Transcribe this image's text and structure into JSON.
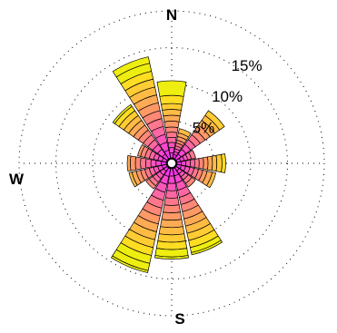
{
  "chart_data": {
    "type": "windrose",
    "title": "",
    "direction_labels": {
      "north": "N",
      "south": "S",
      "west": "W",
      "east": ""
    },
    "ring_labels": [
      "5%",
      "10%",
      "15%"
    ],
    "radial_ticks_percent": [
      5,
      10,
      15
    ],
    "radial_max_percent": 20,
    "grid": true,
    "sector_count": 16,
    "sector_directions_deg": [
      0,
      22.5,
      45,
      67.5,
      90,
      112.5,
      135,
      157.5,
      180,
      202.5,
      225,
      247.5,
      270,
      292.5,
      315,
      337.5
    ],
    "bin_colors": [
      "#ff33ee",
      "#ff44d4",
      "#ff55bb",
      "#ff66a3",
      "#ff778c",
      "#ff8877",
      "#ff9966",
      "#ffaa55",
      "#ffbb44",
      "#ffcc33",
      "#ffdd22",
      "#eeee11"
    ],
    "sectors": [
      {
        "direction_deg": 0,
        "cumulative_percent": [
          0.7,
          1.4,
          2.1,
          2.8,
          3.5,
          4.2,
          5.0,
          5.8,
          6.6,
          7.4,
          8.5,
          10.5
        ]
      },
      {
        "direction_deg": 22.5,
        "cumulative_percent": [
          0.5,
          0.9,
          1.3,
          1.7,
          2.1,
          2.5,
          3.0,
          3.5,
          4.1
        ]
      },
      {
        "direction_deg": 45,
        "cumulative_percent": [
          0.8,
          1.6,
          2.4,
          3.2,
          4.0,
          4.8,
          5.6,
          6.4,
          7.2,
          8.0
        ]
      },
      {
        "direction_deg": 67.5,
        "cumulative_percent": [
          0.5,
          1.0,
          1.5,
          2.0,
          2.6
        ]
      },
      {
        "direction_deg": 90,
        "cumulative_percent": [
          0.6,
          1.2,
          1.8,
          2.4,
          3.0,
          3.6,
          4.2,
          4.8,
          5.4,
          6.1,
          6.6
        ]
      },
      {
        "direction_deg": 112.5,
        "cumulative_percent": [
          0.6,
          1.2,
          1.8,
          2.4,
          3.0,
          3.6,
          4.2,
          4.9,
          5.4
        ]
      },
      {
        "direction_deg": 135,
        "cumulative_percent": [
          0.5,
          1.0,
          1.5,
          2.0,
          2.6,
          3.2
        ]
      },
      {
        "direction_deg": 157.5,
        "cumulative_percent": [
          1.0,
          2.0,
          3.0,
          4.0,
          5.0,
          6.0,
          7.0,
          8.0,
          9.0,
          10.0,
          11.0,
          11.7,
          12.0
        ]
      },
      {
        "direction_deg": 180,
        "cumulative_percent": [
          1.0,
          2.0,
          3.0,
          4.0,
          5.0,
          6.0,
          7.0,
          8.0,
          9.0,
          10.0,
          11.0,
          12.0,
          12.3
        ]
      },
      {
        "direction_deg": 202.5,
        "cumulative_percent": [
          1.1,
          2.2,
          3.3,
          4.4,
          5.5,
          6.6,
          7.7,
          8.8,
          9.9,
          11.0,
          12.1,
          13.2,
          14.2,
          14.5
        ]
      },
      {
        "direction_deg": 225,
        "cumulative_percent": [
          0.6,
          1.2,
          1.8,
          2.4,
          3.0,
          3.5
        ]
      },
      {
        "direction_deg": 247.5,
        "cumulative_percent": [
          0.6,
          1.2,
          1.8,
          2.4,
          3.0,
          3.6,
          4.2,
          4.8,
          5.2
        ]
      },
      {
        "direction_deg": 270,
        "cumulative_percent": [
          0.7,
          1.4,
          2.1,
          2.8,
          3.5,
          4.2,
          4.9,
          5.3
        ]
      },
      {
        "direction_deg": 292.5,
        "cumulative_percent": [
          0.6,
          1.2,
          1.8,
          2.4,
          3.0,
          3.6,
          4.0
        ]
      },
      {
        "direction_deg": 315,
        "cumulative_percent": [
          0.8,
          1.6,
          2.4,
          3.2,
          4.0,
          4.8,
          5.6,
          6.4,
          7.2,
          8.0,
          8.7,
          9.0
        ]
      },
      {
        "direction_deg": 337.5,
        "cumulative_percent": [
          1.1,
          2.2,
          3.3,
          4.4,
          5.5,
          6.6,
          7.7,
          8.8,
          9.9,
          11.0,
          12.1,
          13.2,
          14.1
        ]
      }
    ]
  }
}
